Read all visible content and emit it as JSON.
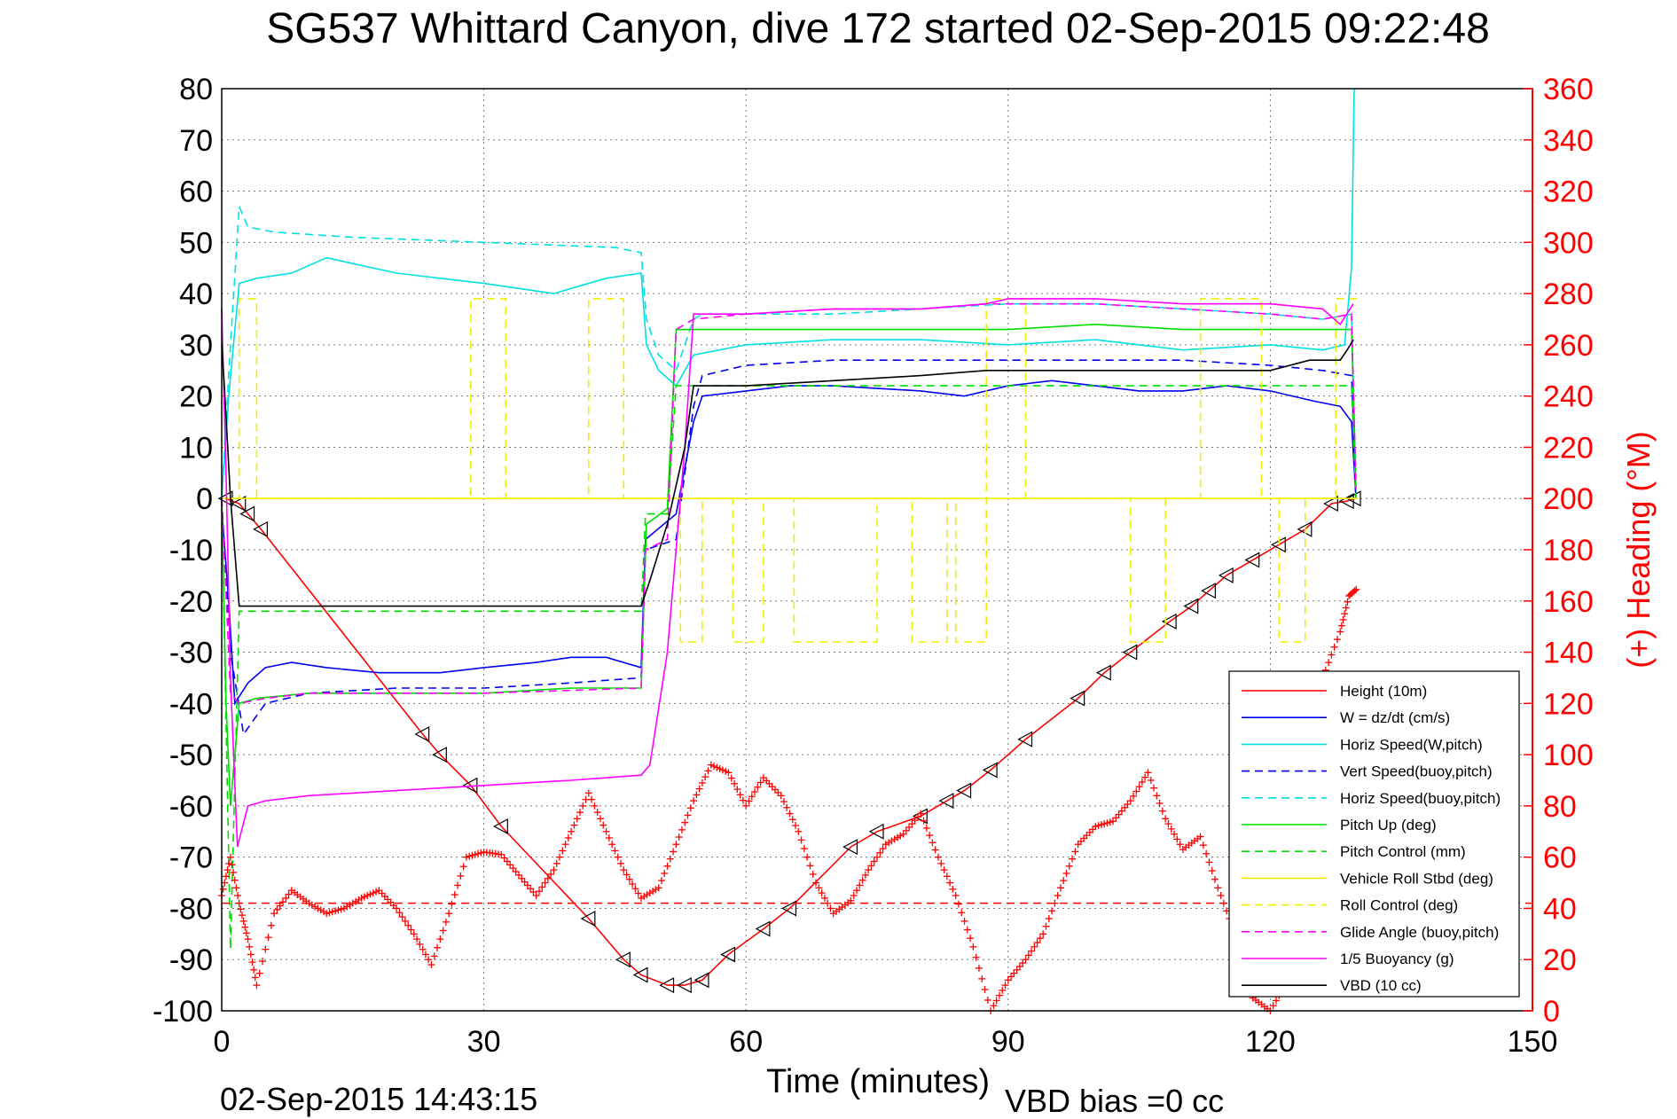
{
  "chart_data": {
    "type": "line",
    "title": "SG537 Whittard Canyon, dive 172 started 02-Sep-2015 09:22:48",
    "xlabel": "Time (minutes)",
    "ylabel": "",
    "ylabel_right": "(+) Heading (°M)",
    "footer_left": "02-Sep-2015 14:43:15",
    "footer_right": "VBD bias =0 cc",
    "xlim": [
      0,
      150
    ],
    "ylim": [
      -100,
      80
    ],
    "ylim_right": [
      0,
      360
    ],
    "x_ticks": [
      0,
      30,
      60,
      90,
      120,
      150
    ],
    "y_ticks": [
      -100,
      -90,
      -80,
      -70,
      -60,
      -50,
      -40,
      -30,
      -20,
      -10,
      0,
      10,
      20,
      30,
      40,
      50,
      60,
      70,
      80
    ],
    "y_ticks_right": [
      0,
      20,
      40,
      60,
      80,
      100,
      120,
      140,
      160,
      180,
      200,
      220,
      240,
      260,
      280,
      300,
      320,
      340,
      360
    ],
    "grid": true,
    "legend_position": "bottom-right",
    "series": [
      {
        "name": "Height (10m)",
        "color": "#ff0000",
        "dash": "solid",
        "marker": "triangle-left",
        "x": [
          0.5,
          2,
          3,
          4.5,
          23,
          25,
          28.5,
          32,
          42,
          46,
          48,
          51,
          53,
          55,
          58,
          62,
          65,
          72,
          75,
          80,
          83,
          85,
          88,
          92,
          98,
          101,
          104,
          108.5,
          111,
          113,
          115,
          118,
          121,
          124,
          127,
          128.8,
          129.6
        ],
        "y": [
          0,
          -1,
          -3,
          -6,
          -46,
          -50,
          -56,
          -64,
          -82,
          -90,
          -93,
          -95,
          -95,
          -94,
          -89,
          -84,
          -80,
          -68,
          -65,
          -62,
          -59,
          -57,
          -53,
          -47,
          -39,
          -34,
          -30,
          -24,
          -21,
          -18,
          -15,
          -12,
          -9,
          -6,
          -1,
          -0.5,
          0
        ]
      },
      {
        "name": "W = dz/dt (cm/s)",
        "color": "#0000ee",
        "dash": "solid",
        "x": [
          0,
          0.8,
          1.5,
          3,
          5,
          8,
          12,
          18,
          25,
          30,
          36,
          40,
          44,
          48,
          48.5,
          52,
          54,
          55,
          60,
          65,
          70,
          80,
          85,
          90,
          95,
          100,
          105,
          110,
          115,
          120,
          125,
          128,
          129.3,
          129.8
        ],
        "y": [
          -2,
          -20,
          -40,
          -36,
          -33,
          -32,
          -33,
          -34,
          -34,
          -33,
          -32,
          -31,
          -31,
          -33,
          -8,
          -3,
          15,
          20,
          21,
          22,
          22,
          21,
          20,
          22,
          23,
          22,
          21,
          21,
          22,
          21,
          19,
          18,
          15,
          0
        ]
      },
      {
        "name": "Horiz Speed(W,pitch)",
        "color": "#00e0e0",
        "dash": "solid",
        "x": [
          0,
          0.8,
          2,
          4,
          8,
          12,
          20,
          30,
          38,
          44,
          48,
          48.6,
          50,
          52,
          54,
          60,
          70,
          80,
          90,
          100,
          110,
          120,
          126,
          128.5,
          129.3,
          129.6
        ],
        "y": [
          0,
          20,
          42,
          43,
          44,
          47,
          44,
          42,
          40,
          43,
          44,
          30,
          25,
          22,
          28,
          30,
          31,
          31,
          30,
          31,
          29,
          30,
          29,
          30,
          45,
          80
        ]
      },
      {
        "name": "Vert Speed(buoy,pitch)",
        "color": "#0000ee",
        "dash": "dashed",
        "x": [
          0,
          1,
          2.5,
          5,
          10,
          20,
          30,
          40,
          48,
          48.5,
          52,
          54,
          55,
          60,
          70,
          80,
          90,
          100,
          110,
          120,
          126,
          129.3,
          129.8
        ],
        "y": [
          0,
          -30,
          -46,
          -40,
          -38,
          -37,
          -37,
          -36,
          -35,
          -10,
          -8,
          18,
          24,
          26,
          27,
          27,
          27,
          27,
          27,
          26,
          25,
          24,
          2
        ]
      },
      {
        "name": "Horiz Speed(buoy,pitch)",
        "color": "#00e0e0",
        "dash": "dashed",
        "x": [
          0,
          1,
          2,
          3,
          6,
          15,
          30,
          45,
          48,
          48.6,
          50,
          52,
          54,
          55,
          60,
          70,
          80,
          90,
          100,
          110,
          120,
          126,
          129.3,
          129.8
        ],
        "y": [
          0,
          30,
          57,
          53,
          52,
          51,
          50,
          49,
          48,
          35,
          28,
          25,
          35,
          36,
          36,
          36,
          37,
          38,
          38,
          37,
          36,
          35,
          36,
          2
        ]
      },
      {
        "name": "Pitch Up (deg)",
        "color": "#00dd00",
        "dash": "solid",
        "x": [
          0,
          0.5,
          1,
          2,
          4,
          10,
          20,
          30,
          40,
          48,
          48.6,
          51,
          52,
          54,
          60,
          70,
          80,
          90,
          100,
          110,
          120,
          126,
          129.3,
          129.8
        ],
        "y": [
          0,
          -40,
          -60,
          -40,
          -39,
          -38,
          -38,
          -38,
          -37,
          -37,
          -5,
          -2,
          33,
          33,
          33,
          33,
          33,
          33,
          34,
          33,
          33,
          33,
          33,
          2
        ]
      },
      {
        "name": "Pitch Control (mm)",
        "color": "#00dd00",
        "dash": "dashed",
        "x": [
          0,
          1,
          2,
          5,
          10,
          30,
          48,
          48.5,
          51,
          52,
          55,
          70,
          90,
          100,
          110,
          120,
          129.3,
          129.8
        ],
        "y": [
          0,
          -88,
          -22,
          -22,
          -22,
          -22,
          -22,
          -3,
          -3,
          22,
          22,
          22,
          22,
          22,
          22,
          22,
          22,
          0
        ]
      },
      {
        "name": "Vehicle Roll Stbd (deg)",
        "color": "#eeee00",
        "dash": "solid",
        "x": [
          0,
          130
        ],
        "y": [
          0,
          0
        ]
      },
      {
        "name": "Roll Control (deg)",
        "color": "#eeee00",
        "dash": "dashed",
        "x": [
          0,
          2,
          2,
          4,
          4,
          28.5,
          28.5,
          32.5,
          32.5,
          42,
          42,
          46,
          46,
          52.5,
          52.5,
          55,
          55,
          58.5,
          58.5,
          62,
          62,
          65.5,
          65.5,
          75,
          75,
          79,
          79,
          83,
          83,
          84,
          84,
          87.5,
          87.5,
          92,
          92,
          104,
          104,
          108,
          108,
          112,
          112,
          119,
          119,
          121,
          121,
          124,
          124,
          127.5,
          127.5,
          130
        ],
        "y": [
          0,
          0,
          39,
          39,
          0,
          0,
          39,
          39,
          0,
          0,
          39,
          39,
          0,
          0,
          -28,
          -28,
          0,
          0,
          -28,
          -28,
          0,
          0,
          -28,
          -28,
          0,
          0,
          -28,
          -28,
          0,
          0,
          -28,
          -28,
          39,
          39,
          0,
          0,
          -28,
          -28,
          0,
          0,
          39,
          39,
          0,
          0,
          -28,
          -28,
          0,
          0,
          39,
          39
        ]
      },
      {
        "name": "Glide Angle (buoy,pitch)",
        "color": "#ff00ff",
        "dash": "dashed",
        "x": [
          0,
          1,
          2,
          5,
          10,
          30,
          48,
          48.5,
          51,
          52,
          54,
          60,
          70,
          80,
          87.5,
          90,
          100,
          110,
          120,
          126,
          129.3,
          129.8
        ],
        "y": [
          0,
          -38,
          -40,
          -39,
          -38,
          -38,
          -37,
          -10,
          -8,
          33,
          35,
          36,
          37,
          37,
          38,
          38,
          38,
          37,
          36,
          35,
          36,
          2
        ]
      },
      {
        "name": "1/5 Buoyancy (g)",
        "color": "#ff00ff",
        "dash": "solid",
        "x": [
          0,
          0.5,
          1,
          1.8,
          3,
          5,
          10,
          20,
          30,
          40,
          48,
          49,
          51,
          53,
          54,
          60,
          70,
          80,
          87.5,
          90,
          100,
          110,
          120,
          126,
          128,
          129.5
        ],
        "y": [
          37,
          5,
          -35,
          -68,
          -60,
          -59,
          -58,
          -57,
          -56,
          -55,
          -54,
          -52,
          -30,
          10,
          36,
          36,
          37,
          37,
          38,
          39,
          39,
          38,
          38,
          37,
          34,
          38
        ]
      },
      {
        "name": "VBD (10 cc)",
        "color": "#000000",
        "dash": "solid",
        "x": [
          0,
          0.3,
          1,
          2,
          5,
          20,
          35,
          45,
          48,
          49,
          51,
          53,
          54,
          60,
          70,
          80,
          87.5,
          90,
          100,
          110,
          120,
          124.5,
          128,
          128.8,
          129.5
        ],
        "y": [
          30,
          22,
          0,
          -21,
          -21,
          -21,
          -21,
          -21,
          -21,
          -16,
          -5,
          10,
          22,
          22,
          23,
          24,
          25,
          25,
          25,
          25,
          25,
          27,
          27,
          29,
          31
        ]
      }
    ],
    "heading": {
      "name": "Heading (°M)",
      "axis": "right",
      "color": "#ff0000",
      "marker": "+",
      "x": [
        0,
        1,
        2,
        3,
        4,
        6,
        8,
        10,
        12,
        14,
        16,
        18,
        20,
        22,
        24,
        26,
        28,
        30,
        32,
        34,
        36,
        38,
        40,
        42,
        44,
        46,
        48,
        50,
        52,
        54,
        56,
        58,
        60,
        62,
        64,
        66,
        68,
        70,
        72,
        74,
        76,
        78,
        80,
        82,
        84,
        86,
        88,
        90,
        92,
        94,
        96,
        98,
        100,
        102,
        104,
        106,
        108,
        110,
        112,
        114,
        116,
        118,
        120,
        122,
        124,
        126,
        128,
        129,
        130
      ],
      "y": [
        45,
        60,
        42,
        28,
        10,
        38,
        47,
        42,
        38,
        40,
        44,
        47,
        40,
        30,
        18,
        38,
        60,
        62,
        61,
        53,
        45,
        55,
        70,
        85,
        70,
        55,
        44,
        48,
        65,
        82,
        96,
        93,
        80,
        91,
        84,
        70,
        50,
        38,
        43,
        55,
        65,
        69,
        77,
        60,
        45,
        25,
        0,
        12,
        20,
        30,
        48,
        65,
        72,
        74,
        82,
        93,
        75,
        63,
        68,
        48,
        30,
        5,
        0,
        12,
        108,
        130,
        148,
        162,
        165
      ]
    },
    "heading_ref": {
      "value": 42,
      "axis": "right",
      "color": "#ff0000",
      "dash": "dashed"
    }
  }
}
